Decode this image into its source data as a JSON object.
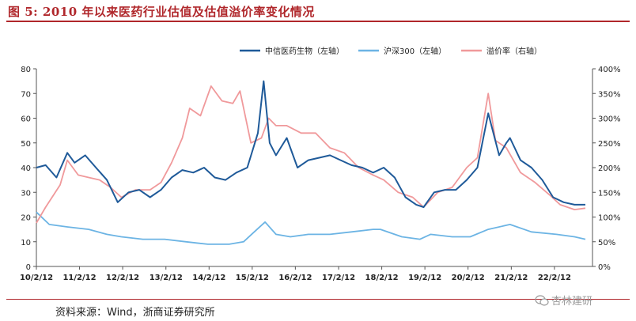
{
  "figure": {
    "title": "图 5:   2010 年以来医药行业估值及估值溢价率变化情况",
    "source": "资料来源：Wind，浙商证券研究所",
    "watermark": "杏林建研"
  },
  "colors": {
    "pharma": "#1f5a99",
    "hs300": "#6cb4e4",
    "premium": "#f0999b",
    "title": "#b0272b"
  },
  "chart_data": {
    "type": "line",
    "x_ticks": [
      "10/2/12",
      "11/2/12",
      "12/2/12",
      "13/2/12",
      "14/2/12",
      "15/2/12",
      "16/2/12",
      "17/2/12",
      "18/2/12",
      "19/2/12",
      "20/2/12",
      "21/2/12",
      "22/2/12"
    ],
    "x_start": "2010-02-12",
    "x_end": "2022-12-31",
    "y_left": {
      "min": 0,
      "max": 80,
      "ticks": [
        0,
        10,
        20,
        30,
        40,
        50,
        60,
        70,
        80
      ]
    },
    "y_right": {
      "min": 0,
      "max": 400,
      "ticks": [
        "0%",
        "50%",
        "100%",
        "150%",
        "200%",
        "250%",
        "300%",
        "350%",
        "400%"
      ]
    },
    "grid": false,
    "legend_position": "top-right",
    "series": [
      {
        "name": "中信医药生物（左轴）",
        "axis": "left",
        "points": [
          [
            "2010-02-12",
            40
          ],
          [
            "2010-05-01",
            41
          ],
          [
            "2010-08-01",
            36
          ],
          [
            "2010-11-01",
            46
          ],
          [
            "2011-01-01",
            42
          ],
          [
            "2011-04-01",
            45
          ],
          [
            "2011-07-01",
            40
          ],
          [
            "2011-10-01",
            35
          ],
          [
            "2012-01-01",
            26
          ],
          [
            "2012-04-01",
            30
          ],
          [
            "2012-07-01",
            31
          ],
          [
            "2012-10-01",
            28
          ],
          [
            "2013-01-01",
            31
          ],
          [
            "2013-04-01",
            36
          ],
          [
            "2013-07-01",
            39
          ],
          [
            "2013-10-01",
            38
          ],
          [
            "2014-01-01",
            40
          ],
          [
            "2014-04-01",
            36
          ],
          [
            "2014-07-01",
            35
          ],
          [
            "2014-10-01",
            38
          ],
          [
            "2015-01-01",
            40
          ],
          [
            "2015-04-01",
            54
          ],
          [
            "2015-05-20",
            75
          ],
          [
            "2015-07-10",
            50
          ],
          [
            "2015-09-01",
            45
          ],
          [
            "2015-12-01",
            52
          ],
          [
            "2016-03-01",
            40
          ],
          [
            "2016-06-01",
            43
          ],
          [
            "2016-09-01",
            44
          ],
          [
            "2016-12-01",
            45
          ],
          [
            "2017-03-01",
            43
          ],
          [
            "2017-06-01",
            41
          ],
          [
            "2017-09-01",
            40
          ],
          [
            "2017-12-01",
            38
          ],
          [
            "2018-03-01",
            40
          ],
          [
            "2018-06-01",
            36
          ],
          [
            "2018-09-01",
            28
          ],
          [
            "2018-12-01",
            25
          ],
          [
            "2019-02-01",
            24
          ],
          [
            "2019-05-01",
            30
          ],
          [
            "2019-08-01",
            31
          ],
          [
            "2019-11-01",
            31
          ],
          [
            "2020-02-01",
            35
          ],
          [
            "2020-05-01",
            40
          ],
          [
            "2020-08-01",
            62
          ],
          [
            "2020-11-01",
            45
          ],
          [
            "2021-01-01",
            50
          ],
          [
            "2021-02-01",
            52
          ],
          [
            "2021-05-01",
            43
          ],
          [
            "2021-08-01",
            40
          ],
          [
            "2021-11-01",
            35
          ],
          [
            "2022-02-01",
            28
          ],
          [
            "2022-05-01",
            26
          ],
          [
            "2022-08-01",
            25
          ],
          [
            "2022-11-01",
            25
          ]
        ]
      },
      {
        "name": "沪深300（左轴）",
        "axis": "left",
        "points": [
          [
            "2010-02-12",
            22
          ],
          [
            "2010-06-01",
            17
          ],
          [
            "2010-11-01",
            16
          ],
          [
            "2011-05-01",
            15
          ],
          [
            "2011-10-01",
            13
          ],
          [
            "2012-02-01",
            12
          ],
          [
            "2012-08-01",
            11
          ],
          [
            "2013-02-01",
            11
          ],
          [
            "2013-08-01",
            10
          ],
          [
            "2014-02-01",
            9
          ],
          [
            "2014-08-01",
            9
          ],
          [
            "2014-12-01",
            10
          ],
          [
            "2015-03-01",
            14
          ],
          [
            "2015-06-01",
            18
          ],
          [
            "2015-09-01",
            13
          ],
          [
            "2016-01-01",
            12
          ],
          [
            "2016-06-01",
            13
          ],
          [
            "2016-12-01",
            13
          ],
          [
            "2017-06-01",
            14
          ],
          [
            "2017-12-01",
            15
          ],
          [
            "2018-02-01",
            15
          ],
          [
            "2018-08-01",
            12
          ],
          [
            "2019-01-01",
            11
          ],
          [
            "2019-04-01",
            13
          ],
          [
            "2019-10-01",
            12
          ],
          [
            "2020-03-01",
            12
          ],
          [
            "2020-08-01",
            15
          ],
          [
            "2021-02-01",
            17
          ],
          [
            "2021-08-01",
            14
          ],
          [
            "2022-03-01",
            13
          ],
          [
            "2022-08-01",
            12
          ],
          [
            "2022-11-01",
            11
          ]
        ]
      },
      {
        "name": "溢价率（右轴）",
        "axis": "right",
        "points": [
          [
            "2010-02-12",
            88
          ],
          [
            "2010-05-01",
            120
          ],
          [
            "2010-09-01",
            165
          ],
          [
            "2010-11-01",
            215
          ],
          [
            "2011-02-01",
            185
          ],
          [
            "2011-05-01",
            180
          ],
          [
            "2011-08-01",
            175
          ],
          [
            "2011-11-01",
            160
          ],
          [
            "2012-02-01",
            140
          ],
          [
            "2012-06-01",
            155
          ],
          [
            "2012-10-01",
            155
          ],
          [
            "2013-01-01",
            170
          ],
          [
            "2013-04-01",
            210
          ],
          [
            "2013-07-01",
            260
          ],
          [
            "2013-09-01",
            320
          ],
          [
            "2013-12-01",
            305
          ],
          [
            "2014-03-01",
            365
          ],
          [
            "2014-06-01",
            335
          ],
          [
            "2014-09-01",
            330
          ],
          [
            "2014-11-01",
            355
          ],
          [
            "2015-02-01",
            250
          ],
          [
            "2015-05-01",
            260
          ],
          [
            "2015-07-01",
            300
          ],
          [
            "2015-09-01",
            285
          ],
          [
            "2015-12-01",
            285
          ],
          [
            "2016-04-01",
            270
          ],
          [
            "2016-08-01",
            270
          ],
          [
            "2016-12-01",
            240
          ],
          [
            "2017-04-01",
            230
          ],
          [
            "2017-08-01",
            200
          ],
          [
            "2017-12-01",
            185
          ],
          [
            "2018-03-01",
            175
          ],
          [
            "2018-07-01",
            150
          ],
          [
            "2018-11-01",
            140
          ],
          [
            "2019-02-01",
            120
          ],
          [
            "2019-06-01",
            150
          ],
          [
            "2019-10-01",
            160
          ],
          [
            "2020-02-01",
            200
          ],
          [
            "2020-05-01",
            220
          ],
          [
            "2020-08-01",
            350
          ],
          [
            "2020-10-01",
            255
          ],
          [
            "2021-01-01",
            240
          ],
          [
            "2021-05-01",
            190
          ],
          [
            "2021-09-01",
            170
          ],
          [
            "2022-01-01",
            145
          ],
          [
            "2022-04-01",
            125
          ],
          [
            "2022-08-01",
            115
          ],
          [
            "2022-11-01",
            118
          ]
        ]
      }
    ]
  }
}
